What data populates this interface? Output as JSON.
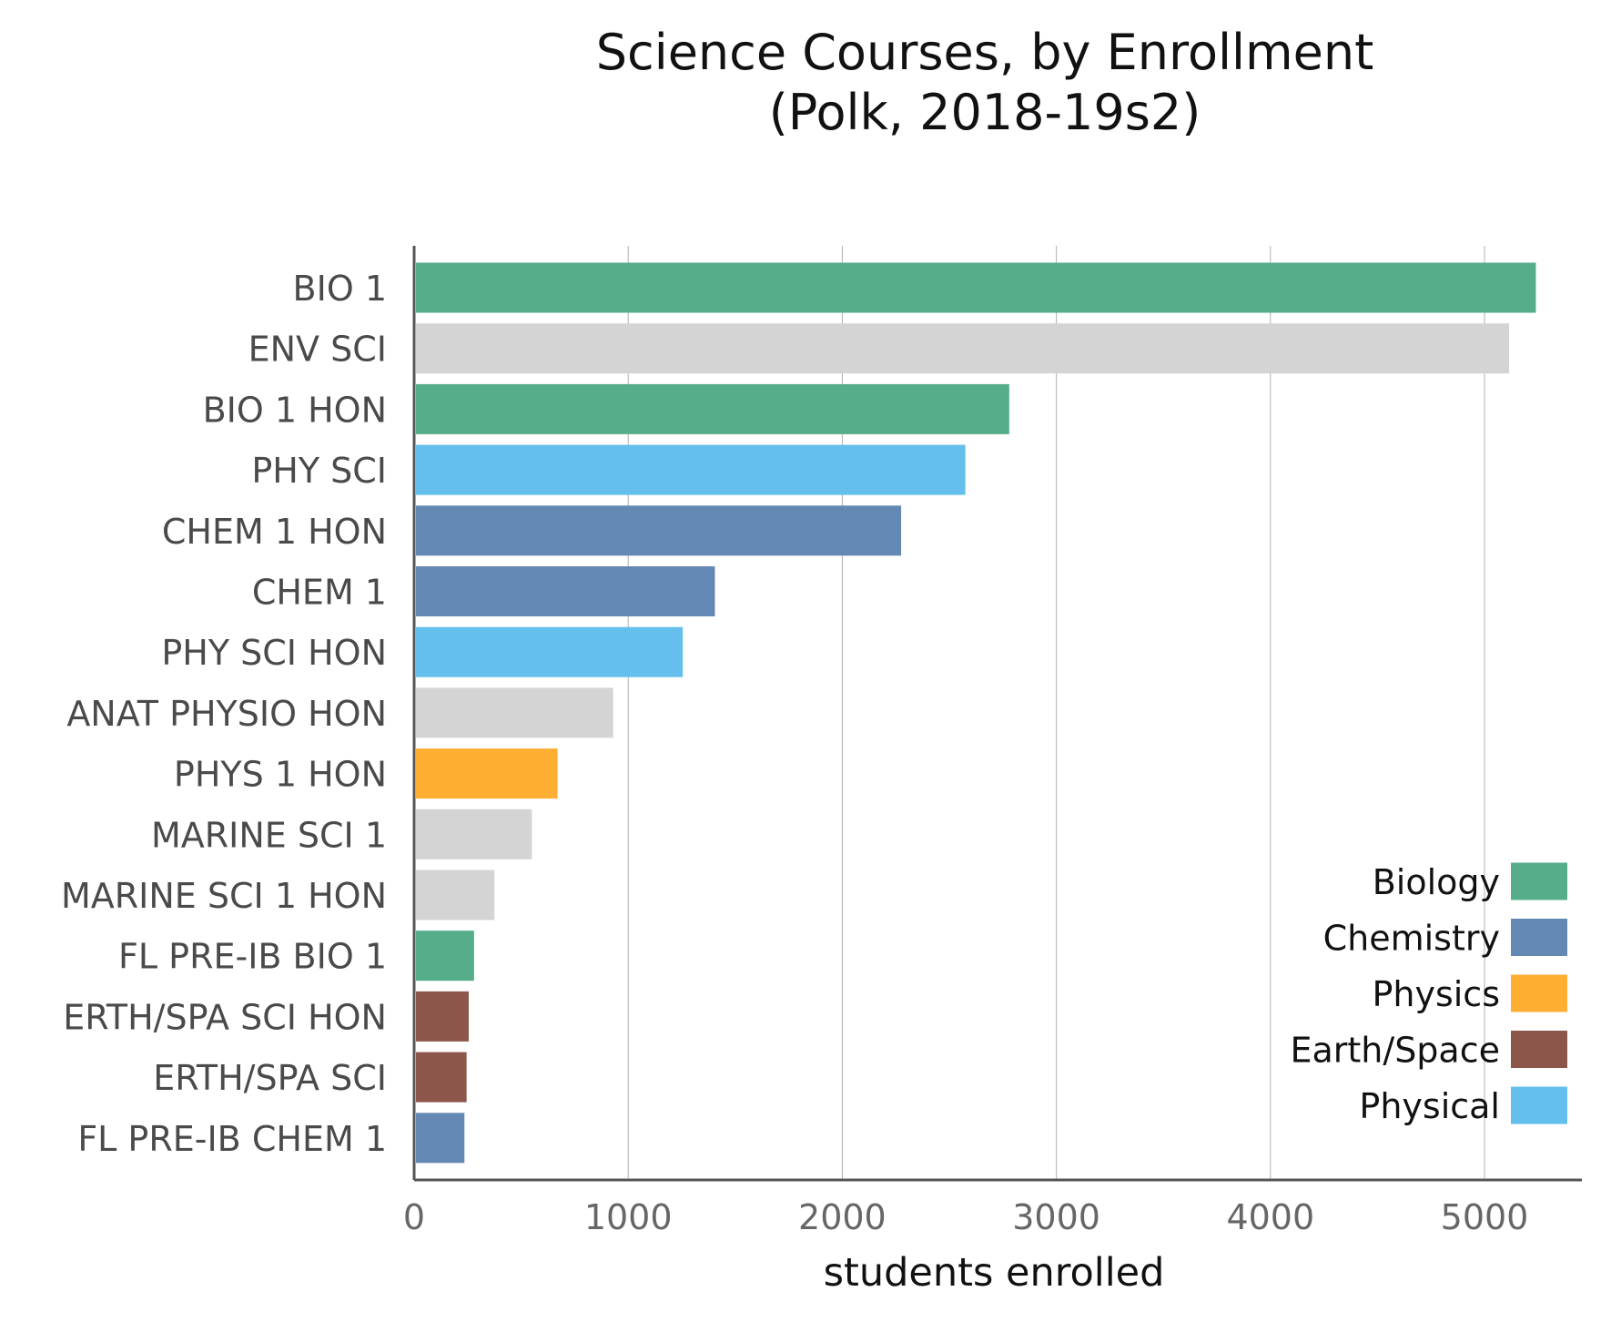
{
  "chart_data": {
    "type": "bar",
    "orientation": "horizontal",
    "title": "Science Courses, by Enrollment\n(Polk, 2018-19s2)",
    "title_lines": [
      "Science Courses, by Enrollment",
      "(Polk, 2018-19s2)"
    ],
    "xlabel": "students enrolled",
    "ylabel": "",
    "xlim": [
      0,
      5500
    ],
    "xticks": [
      0,
      1000,
      2000,
      3000,
      4000,
      5000
    ],
    "grid": "vertical",
    "legend_position": "bottom-right",
    "categories": [
      "BIO 1",
      "ENV SCI",
      "BIO 1 HON",
      "PHY SCI",
      "CHEM 1 HON",
      "CHEM 1",
      "PHY SCI HON",
      "ANAT PHYSIO HON",
      "PHYS 1 HON",
      "MARINE SCI 1",
      "MARINE SCI 1 HON",
      "FL PRE-IB BIO 1",
      "ERTH/SPA SCI HON",
      "ERTH/SPA SCI",
      "FL PRE-IB CHEM 1"
    ],
    "values": [
      5240,
      5115,
      2780,
      2575,
      2275,
      1405,
      1255,
      930,
      670,
      550,
      375,
      280,
      255,
      245,
      235
    ],
    "bar_groups": [
      "Biology",
      "Other",
      "Biology",
      "Physical",
      "Chemistry",
      "Chemistry",
      "Physical",
      "Other",
      "Physics",
      "Other",
      "Other",
      "Biology",
      "Earth/Space",
      "Earth/Space",
      "Chemistry"
    ],
    "legend": [
      {
        "name": "Biology",
        "color": "#55ad89"
      },
      {
        "name": "Chemistry",
        "color": "#6388b4"
      },
      {
        "name": "Physics",
        "color": "#ffae34"
      },
      {
        "name": "Earth/Space",
        "color": "#8c564b"
      },
      {
        "name": "Physical",
        "color": "#64bfec"
      }
    ],
    "colors": {
      "Biology": "#55ad89",
      "Chemistry": "#6388b4",
      "Physics": "#ffae34",
      "Earth/Space": "#8c564b",
      "Physical": "#64bfec",
      "Other": "#d4d4d4"
    }
  }
}
